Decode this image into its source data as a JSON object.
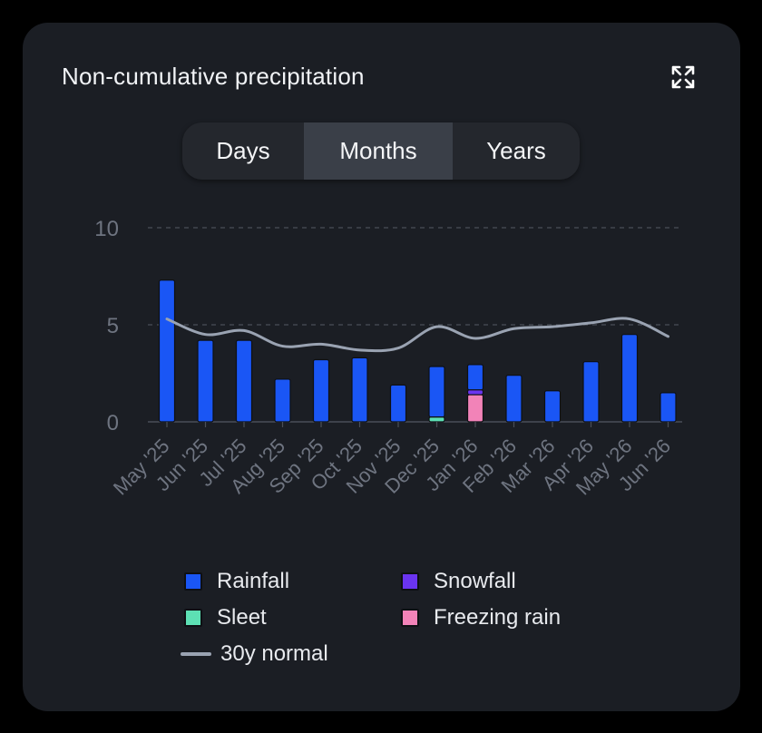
{
  "card": {
    "title": "Non-cumulative precipitation",
    "expand_icon": "expand-icon"
  },
  "tabs": [
    {
      "label": "Days",
      "active": false
    },
    {
      "label": "Months",
      "active": true
    },
    {
      "label": "Years",
      "active": false
    }
  ],
  "colors": {
    "background": "#000000",
    "card": "#1b1e24",
    "rainfall": "#1a56f5",
    "snowfall": "#6a34f0",
    "sleet": "#5de0b4",
    "freezing_rain": "#f283b8",
    "normal_line": "#9aa3b2",
    "grid": "#4a4f58",
    "axis_text": "#6e7480"
  },
  "legend": {
    "rainfall": "Rainfall",
    "snowfall": "Snowfall",
    "sleet": "Sleet",
    "freezing_rain": "Freezing rain",
    "normal": "30y normal"
  },
  "chart_data": {
    "type": "bar",
    "stacked": true,
    "categories": [
      "May '25",
      "Jun '25",
      "Jul '25",
      "Aug '25",
      "Sep '25",
      "Oct '25",
      "Nov '25",
      "Dec '25",
      "Jan '26",
      "Feb '26",
      "Mar '26",
      "Apr '26",
      "May '26",
      "Jun '26"
    ],
    "ylim": [
      0,
      10
    ],
    "yticks": [
      0,
      5,
      10
    ],
    "grid": true,
    "series": [
      {
        "name": "Rainfall",
        "values": [
          7.3,
          4.2,
          4.2,
          2.2,
          3.2,
          3.3,
          1.9,
          2.6,
          1.3,
          2.4,
          1.6,
          3.1,
          4.5,
          1.5
        ]
      },
      {
        "name": "Snowfall",
        "values": [
          0,
          0,
          0,
          0,
          0,
          0,
          0,
          0,
          0.25,
          0,
          0,
          0,
          0,
          0
        ]
      },
      {
        "name": "Sleet",
        "values": [
          0,
          0,
          0,
          0,
          0,
          0,
          0,
          0.25,
          0,
          0,
          0,
          0,
          0,
          0
        ]
      },
      {
        "name": "Freezing rain",
        "values": [
          0,
          0,
          0,
          0,
          0,
          0,
          0,
          0,
          1.4,
          0,
          0,
          0,
          0,
          0
        ]
      }
    ],
    "line": {
      "name": "30y normal",
      "values": [
        5.3,
        4.5,
        4.7,
        3.9,
        4.0,
        3.7,
        3.8,
        4.9,
        4.3,
        4.8,
        4.9,
        5.1,
        5.3,
        4.4
      ]
    }
  }
}
